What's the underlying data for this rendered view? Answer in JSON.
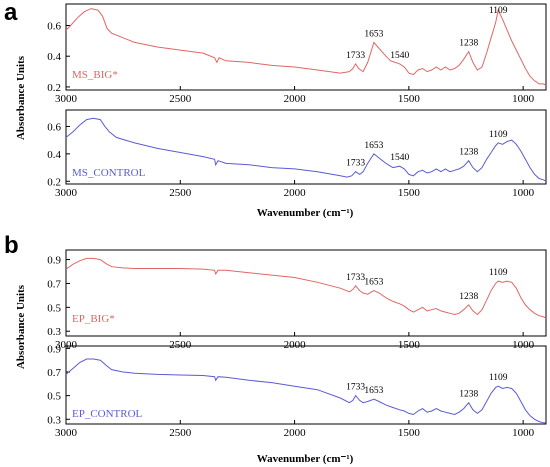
{
  "panels": [
    {
      "label": "a",
      "ylabel": "Absorbance Units",
      "xlabel": "Wavenumber (cm⁻¹)"
    },
    {
      "label": "b",
      "ylabel": "Absorbance Units",
      "xlabel": "Wavenumber (cm⁻¹)"
    }
  ],
  "colors": {
    "red": "#e06666",
    "blue": "#5b5bd6",
    "axis": "#000000"
  },
  "chart_data": [
    {
      "type": "line",
      "series_label": "MS_BIG*",
      "color": "#e06666",
      "xlim": [
        3000,
        900
      ],
      "ylim": [
        0.18,
        0.74
      ],
      "xticks": [
        3000,
        2500,
        2000,
        1500,
        1000
      ],
      "yticks": [
        0.2,
        0.4,
        0.6
      ],
      "peaks": [
        1733,
        1653,
        1540,
        1238,
        1109
      ],
      "points": [
        [
          3000,
          0.57
        ],
        [
          2980,
          0.6
        ],
        [
          2950,
          0.65
        ],
        [
          2920,
          0.69
        ],
        [
          2890,
          0.71
        ],
        [
          2860,
          0.7
        ],
        [
          2840,
          0.66
        ],
        [
          2820,
          0.58
        ],
        [
          2800,
          0.55
        ],
        [
          2750,
          0.52
        ],
        [
          2700,
          0.49
        ],
        [
          2600,
          0.46
        ],
        [
          2500,
          0.44
        ],
        [
          2400,
          0.42
        ],
        [
          2350,
          0.39
        ],
        [
          2340,
          0.36
        ],
        [
          2330,
          0.39
        ],
        [
          2300,
          0.37
        ],
        [
          2200,
          0.36
        ],
        [
          2100,
          0.34
        ],
        [
          2000,
          0.33
        ],
        [
          1900,
          0.31
        ],
        [
          1800,
          0.29
        ],
        [
          1760,
          0.3
        ],
        [
          1745,
          0.32
        ],
        [
          1733,
          0.35
        ],
        [
          1720,
          0.32
        ],
        [
          1700,
          0.3
        ],
        [
          1680,
          0.36
        ],
        [
          1653,
          0.49
        ],
        [
          1630,
          0.45
        ],
        [
          1600,
          0.4
        ],
        [
          1580,
          0.37
        ],
        [
          1560,
          0.36
        ],
        [
          1540,
          0.35
        ],
        [
          1520,
          0.33
        ],
        [
          1500,
          0.29
        ],
        [
          1480,
          0.28
        ],
        [
          1460,
          0.31
        ],
        [
          1440,
          0.32
        ],
        [
          1420,
          0.3
        ],
        [
          1400,
          0.31
        ],
        [
          1380,
          0.33
        ],
        [
          1360,
          0.31
        ],
        [
          1340,
          0.33
        ],
        [
          1320,
          0.31
        ],
        [
          1300,
          0.32
        ],
        [
          1280,
          0.34
        ],
        [
          1260,
          0.38
        ],
        [
          1238,
          0.43
        ],
        [
          1220,
          0.36
        ],
        [
          1200,
          0.31
        ],
        [
          1180,
          0.33
        ],
        [
          1160,
          0.42
        ],
        [
          1140,
          0.52
        ],
        [
          1120,
          0.62
        ],
        [
          1109,
          0.7
        ],
        [
          1090,
          0.64
        ],
        [
          1070,
          0.57
        ],
        [
          1050,
          0.5
        ],
        [
          1030,
          0.44
        ],
        [
          1010,
          0.38
        ],
        [
          990,
          0.32
        ],
        [
          970,
          0.27
        ],
        [
          950,
          0.24
        ],
        [
          930,
          0.22
        ],
        [
          910,
          0.22
        ],
        [
          900,
          0.21
        ]
      ]
    },
    {
      "type": "line",
      "series_label": "MS_CONTROL",
      "color": "#5b5bd6",
      "xlim": [
        3000,
        900
      ],
      "ylim": [
        0.18,
        0.72
      ],
      "xticks": [
        3000,
        2500,
        2000,
        1500,
        1000
      ],
      "yticks": [
        0.2,
        0.4,
        0.6
      ],
      "peaks": [
        1733,
        1653,
        1540,
        1238,
        1109
      ],
      "points": [
        [
          3000,
          0.52
        ],
        [
          2970,
          0.56
        ],
        [
          2940,
          0.61
        ],
        [
          2910,
          0.65
        ],
        [
          2880,
          0.66
        ],
        [
          2850,
          0.65
        ],
        [
          2830,
          0.6
        ],
        [
          2810,
          0.56
        ],
        [
          2780,
          0.52
        ],
        [
          2700,
          0.48
        ],
        [
          2600,
          0.44
        ],
        [
          2500,
          0.41
        ],
        [
          2400,
          0.38
        ],
        [
          2350,
          0.36
        ],
        [
          2345,
          0.32
        ],
        [
          2335,
          0.35
        ],
        [
          2300,
          0.33
        ],
        [
          2200,
          0.32
        ],
        [
          2100,
          0.3
        ],
        [
          2000,
          0.29
        ],
        [
          1900,
          0.27
        ],
        [
          1800,
          0.24
        ],
        [
          1770,
          0.23
        ],
        [
          1750,
          0.24
        ],
        [
          1733,
          0.27
        ],
        [
          1715,
          0.25
        ],
        [
          1700,
          0.27
        ],
        [
          1680,
          0.33
        ],
        [
          1653,
          0.4
        ],
        [
          1630,
          0.37
        ],
        [
          1600,
          0.33
        ],
        [
          1570,
          0.3
        ],
        [
          1540,
          0.31
        ],
        [
          1520,
          0.29
        ],
        [
          1500,
          0.25
        ],
        [
          1480,
          0.24
        ],
        [
          1460,
          0.27
        ],
        [
          1440,
          0.28
        ],
        [
          1420,
          0.26
        ],
        [
          1400,
          0.27
        ],
        [
          1380,
          0.29
        ],
        [
          1360,
          0.27
        ],
        [
          1340,
          0.29
        ],
        [
          1320,
          0.27
        ],
        [
          1300,
          0.28
        ],
        [
          1280,
          0.29
        ],
        [
          1260,
          0.31
        ],
        [
          1238,
          0.35
        ],
        [
          1220,
          0.3
        ],
        [
          1200,
          0.27
        ],
        [
          1180,
          0.3
        ],
        [
          1160,
          0.36
        ],
        [
          1140,
          0.41
        ],
        [
          1120,
          0.46
        ],
        [
          1109,
          0.48
        ],
        [
          1090,
          0.47
        ],
        [
          1070,
          0.49
        ],
        [
          1050,
          0.5
        ],
        [
          1030,
          0.47
        ],
        [
          1010,
          0.42
        ],
        [
          990,
          0.36
        ],
        [
          970,
          0.3
        ],
        [
          950,
          0.25
        ],
        [
          930,
          0.22
        ],
        [
          910,
          0.21
        ],
        [
          900,
          0.2
        ]
      ]
    },
    {
      "type": "line",
      "series_label": "EP_BIG*",
      "color": "#e06666",
      "xlim": [
        3000,
        900
      ],
      "ylim": [
        0.26,
        0.98
      ],
      "xticks": [
        3000,
        2500,
        2000,
        1500,
        1000
      ],
      "yticks": [
        0.3,
        0.5,
        0.7,
        0.9
      ],
      "peaks": [
        1733,
        1653,
        1238,
        1109
      ],
      "points": [
        [
          3000,
          0.82
        ],
        [
          2970,
          0.86
        ],
        [
          2940,
          0.89
        ],
        [
          2910,
          0.91
        ],
        [
          2880,
          0.91
        ],
        [
          2850,
          0.9
        ],
        [
          2820,
          0.86
        ],
        [
          2800,
          0.84
        ],
        [
          2750,
          0.83
        ],
        [
          2700,
          0.825
        ],
        [
          2600,
          0.825
        ],
        [
          2500,
          0.825
        ],
        [
          2400,
          0.82
        ],
        [
          2350,
          0.81
        ],
        [
          2345,
          0.78
        ],
        [
          2335,
          0.81
        ],
        [
          2300,
          0.81
        ],
        [
          2200,
          0.79
        ],
        [
          2100,
          0.77
        ],
        [
          2000,
          0.75
        ],
        [
          1900,
          0.71
        ],
        [
          1800,
          0.66
        ],
        [
          1760,
          0.63
        ],
        [
          1745,
          0.65
        ],
        [
          1733,
          0.68
        ],
        [
          1715,
          0.64
        ],
        [
          1700,
          0.62
        ],
        [
          1680,
          0.61
        ],
        [
          1653,
          0.64
        ],
        [
          1630,
          0.62
        ],
        [
          1600,
          0.58
        ],
        [
          1570,
          0.55
        ],
        [
          1540,
          0.53
        ],
        [
          1520,
          0.51
        ],
        [
          1500,
          0.48
        ],
        [
          1480,
          0.46
        ],
        [
          1460,
          0.48
        ],
        [
          1440,
          0.5
        ],
        [
          1420,
          0.47
        ],
        [
          1400,
          0.48
        ],
        [
          1380,
          0.49
        ],
        [
          1360,
          0.47
        ],
        [
          1340,
          0.46
        ],
        [
          1320,
          0.45
        ],
        [
          1300,
          0.44
        ],
        [
          1280,
          0.45
        ],
        [
          1260,
          0.48
        ],
        [
          1238,
          0.52
        ],
        [
          1220,
          0.47
        ],
        [
          1200,
          0.44
        ],
        [
          1180,
          0.48
        ],
        [
          1160,
          0.56
        ],
        [
          1140,
          0.64
        ],
        [
          1120,
          0.7
        ],
        [
          1109,
          0.72
        ],
        [
          1090,
          0.71
        ],
        [
          1070,
          0.72
        ],
        [
          1050,
          0.71
        ],
        [
          1030,
          0.66
        ],
        [
          1010,
          0.58
        ],
        [
          990,
          0.52
        ],
        [
          970,
          0.48
        ],
        [
          950,
          0.45
        ],
        [
          930,
          0.43
        ],
        [
          910,
          0.42
        ],
        [
          900,
          0.41
        ]
      ]
    },
    {
      "type": "line",
      "series_label": "EP_CONTROL",
      "color": "#5b5bd6",
      "xlim": [
        3000,
        900
      ],
      "ylim": [
        0.26,
        0.92
      ],
      "xticks": [
        3000,
        2500,
        2000,
        1500,
        1000
      ],
      "yticks": [
        0.3,
        0.5,
        0.7,
        0.9
      ],
      "peaks": [
        1733,
        1653,
        1238,
        1109
      ],
      "points": [
        [
          3000,
          0.68
        ],
        [
          2970,
          0.73
        ],
        [
          2940,
          0.78
        ],
        [
          2910,
          0.81
        ],
        [
          2880,
          0.81
        ],
        [
          2850,
          0.8
        ],
        [
          2820,
          0.75
        ],
        [
          2800,
          0.72
        ],
        [
          2750,
          0.7
        ],
        [
          2700,
          0.69
        ],
        [
          2600,
          0.68
        ],
        [
          2500,
          0.675
        ],
        [
          2400,
          0.67
        ],
        [
          2350,
          0.66
        ],
        [
          2345,
          0.63
        ],
        [
          2335,
          0.66
        ],
        [
          2300,
          0.655
        ],
        [
          2200,
          0.63
        ],
        [
          2100,
          0.61
        ],
        [
          2000,
          0.58
        ],
        [
          1900,
          0.55
        ],
        [
          1800,
          0.48
        ],
        [
          1760,
          0.44
        ],
        [
          1745,
          0.46
        ],
        [
          1733,
          0.5
        ],
        [
          1715,
          0.46
        ],
        [
          1700,
          0.44
        ],
        [
          1680,
          0.45
        ],
        [
          1653,
          0.47
        ],
        [
          1630,
          0.45
        ],
        [
          1600,
          0.42
        ],
        [
          1570,
          0.4
        ],
        [
          1540,
          0.38
        ],
        [
          1520,
          0.37
        ],
        [
          1500,
          0.35
        ],
        [
          1480,
          0.34
        ],
        [
          1460,
          0.37
        ],
        [
          1440,
          0.39
        ],
        [
          1420,
          0.36
        ],
        [
          1400,
          0.37
        ],
        [
          1380,
          0.39
        ],
        [
          1360,
          0.37
        ],
        [
          1340,
          0.36
        ],
        [
          1320,
          0.35
        ],
        [
          1300,
          0.34
        ],
        [
          1280,
          0.36
        ],
        [
          1260,
          0.39
        ],
        [
          1238,
          0.44
        ],
        [
          1220,
          0.38
        ],
        [
          1200,
          0.35
        ],
        [
          1180,
          0.38
        ],
        [
          1160,
          0.45
        ],
        [
          1140,
          0.52
        ],
        [
          1120,
          0.57
        ],
        [
          1109,
          0.58
        ],
        [
          1090,
          0.56
        ],
        [
          1070,
          0.57
        ],
        [
          1050,
          0.56
        ],
        [
          1030,
          0.52
        ],
        [
          1010,
          0.45
        ],
        [
          990,
          0.38
        ],
        [
          970,
          0.33
        ],
        [
          950,
          0.3
        ],
        [
          930,
          0.28
        ],
        [
          910,
          0.27
        ],
        [
          900,
          0.27
        ]
      ]
    }
  ]
}
